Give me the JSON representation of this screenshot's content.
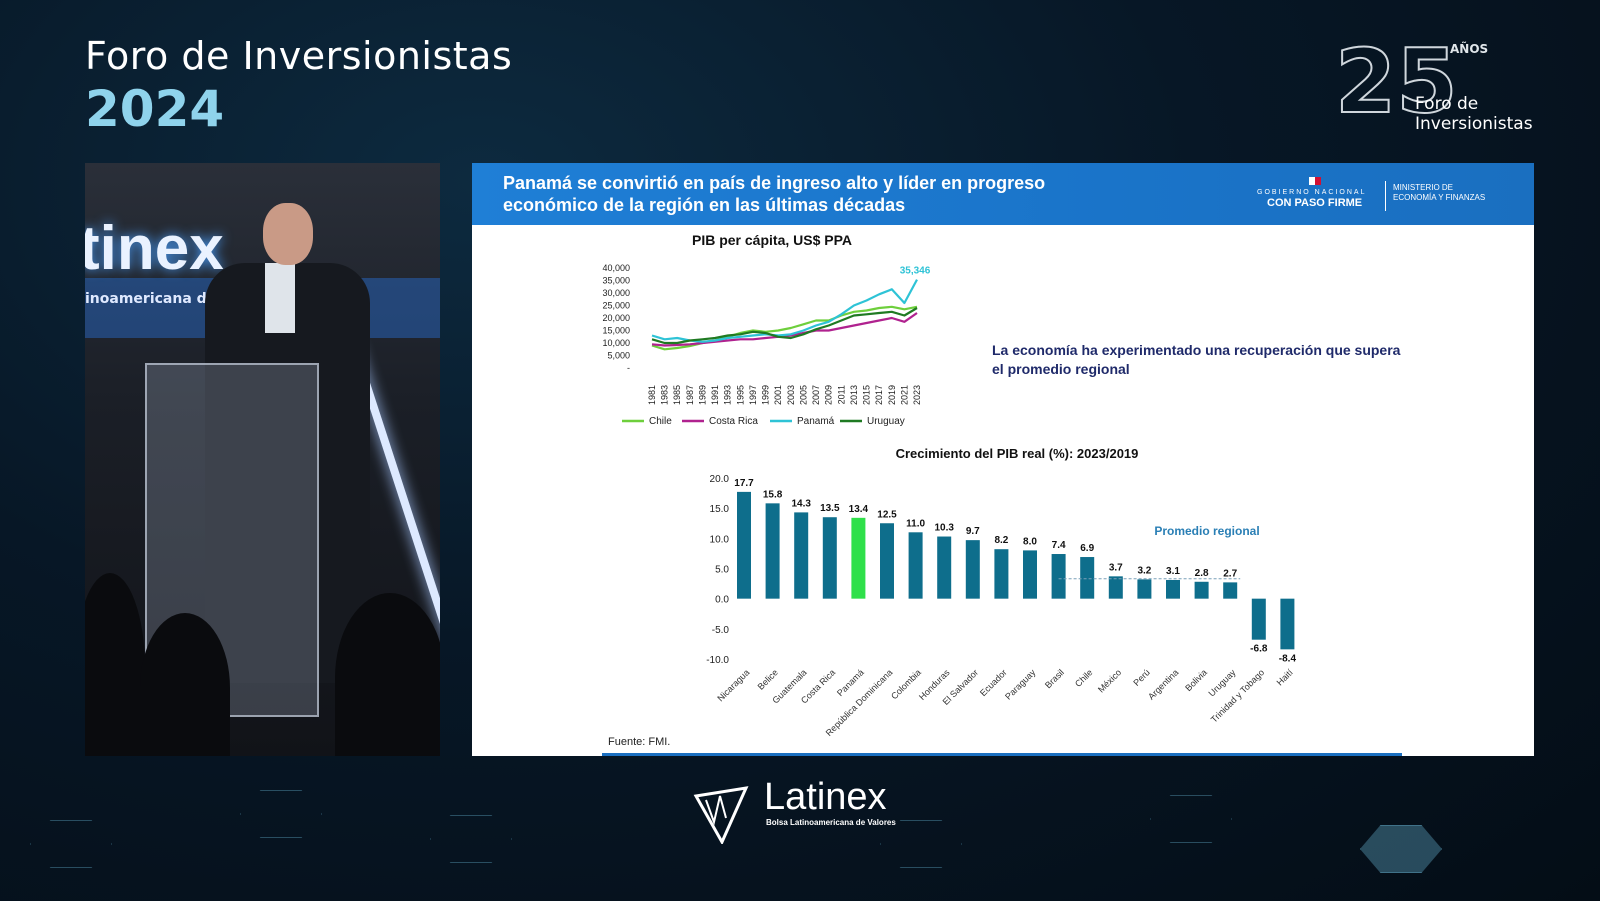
{
  "event": {
    "title": "Foro de Inversionistas",
    "year": "2024"
  },
  "anniversary": {
    "number": "25",
    "years_label": "AÑOS",
    "line1": "Foro de",
    "line2": "Inversionistas"
  },
  "video": {
    "sign": "tinex",
    "sign_sub": "inoamericana de"
  },
  "slide": {
    "title": "Panamá se convirtió en país de ingreso alto y líder en progreso económico de la región en las últimas décadas",
    "gov_line1": "GOBIERNO NACIONAL",
    "gov_line2": "CON PASO FIRME",
    "ministry_line1": "MINISTERIO DE",
    "ministry_line2": "ECONOMÍA Y FINANZAS",
    "note": "La economía ha experimentado una recuperación que supera el promedio regional",
    "source": "Fuente: FMI."
  },
  "colors": {
    "chile": "#6ecf3c",
    "costa_rica": "#b0228f",
    "panama": "#2ec3d6",
    "uruguay": "#1f7a22",
    "bar": "#0e6e8c",
    "bar_highlight": "#2fe04a",
    "header": "#1a74c9",
    "note": "#1f2a6a"
  },
  "chart_data": [
    {
      "type": "line",
      "title": "PIB per cápita, US$ PPA",
      "x": [
        "1981",
        "1983",
        "1985",
        "1987",
        "1989",
        "1991",
        "1993",
        "1995",
        "1997",
        "1999",
        "2001",
        "2003",
        "2005",
        "2007",
        "2009",
        "2011",
        "2013",
        "2015",
        "2017",
        "2019",
        "2021",
        "2023"
      ],
      "yticks": [
        "40,000",
        "35,000",
        "30,000",
        "25,000",
        "20,000",
        "15,000",
        "10,000",
        "5,000",
        "-"
      ],
      "ylim": [
        0,
        40000
      ],
      "annotation": "35,346",
      "series": [
        {
          "name": "Chile",
          "values": [
            9000,
            7500,
            8000,
            8800,
            10000,
            11000,
            12500,
            14000,
            15000,
            14500,
            15000,
            16000,
            17500,
            19000,
            19000,
            21000,
            22500,
            23000,
            24000,
            24500,
            23500,
            24500
          ]
        },
        {
          "name": "Costa Rica",
          "values": [
            9500,
            9000,
            9200,
            9500,
            10000,
            10500,
            11000,
            11500,
            11500,
            12000,
            12500,
            13000,
            14000,
            15000,
            15000,
            16000,
            17000,
            18000,
            19000,
            20000,
            18500,
            22000
          ]
        },
        {
          "name": "Panamá",
          "values": [
            13000,
            11500,
            12000,
            11000,
            10500,
            11000,
            12000,
            12500,
            13000,
            13500,
            13000,
            13500,
            15000,
            17000,
            18500,
            21500,
            25000,
            27000,
            29500,
            31500,
            26000,
            35346
          ]
        },
        {
          "name": "Uruguay",
          "values": [
            11500,
            10000,
            10000,
            11000,
            11500,
            12000,
            13000,
            13500,
            14500,
            14000,
            12500,
            12000,
            13500,
            15500,
            17000,
            19000,
            21000,
            21500,
            22000,
            22500,
            21000,
            24000
          ]
        }
      ]
    },
    {
      "type": "bar",
      "title": "Crecimiento del PIB real (%): 2023/2019",
      "categories": [
        "Nicaragua",
        "Belice",
        "Guatemala",
        "Costa Rica",
        "Panamá",
        "República Dominicana",
        "Colombia",
        "Honduras",
        "El Salvador",
        "Ecuador",
        "Paraguay",
        "Brasil",
        "Chile",
        "México",
        "Perú",
        "Argentina",
        "Bolivia",
        "Uruguay",
        "Trinidad y Tobago",
        "Haití"
      ],
      "values": [
        17.7,
        15.8,
        14.3,
        13.5,
        13.4,
        12.5,
        11.0,
        10.3,
        9.7,
        8.2,
        8.0,
        7.4,
        6.9,
        3.7,
        3.2,
        3.1,
        2.8,
        2.7,
        -6.8,
        -8.4
      ],
      "value_labels": [
        "17.7",
        "15.8",
        "14.3",
        "13.5",
        "13.4",
        "12.5",
        "11.0",
        "10.3",
        "9.7",
        "8.2",
        "8.0",
        "7.4",
        "6.9",
        "3.7",
        "3.2",
        "3.1",
        "2.8",
        "2.7",
        "-6.8",
        "-8.4"
      ],
      "yticks": [
        "20.0",
        "15.0",
        "10.0",
        "5.0",
        "0.0",
        "-5.0",
        "-10.0"
      ],
      "ylim": [
        -10,
        20
      ],
      "highlight": "Panamá",
      "annotation": "Promedio regional"
    }
  ],
  "footer_logo": {
    "name": "Latinex",
    "sub": "Bolsa Latinoamericana de Valores"
  }
}
